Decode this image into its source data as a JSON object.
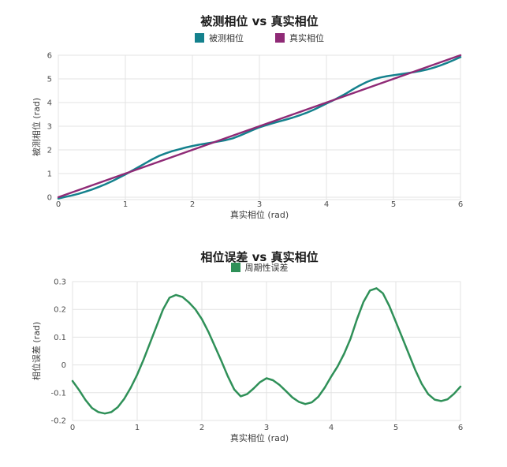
{
  "chart_data": [
    {
      "id": "measured-vs-true",
      "type": "line",
      "title": "被测相位 vs 真实相位",
      "xlabel": "真实相位 (rad)",
      "ylabel": "被测相位 (rad)",
      "xlim": [
        0,
        6
      ],
      "ylim": [
        -0.1,
        6
      ],
      "xticks": [
        0,
        1,
        2,
        3,
        4,
        5,
        6
      ],
      "yticks": [
        0,
        1,
        2,
        3,
        4,
        5,
        6
      ],
      "grid": true,
      "legend_position": "top-center",
      "x": [
        0,
        0.1,
        0.2,
        0.3,
        0.4,
        0.5,
        0.6,
        0.7,
        0.8,
        0.9,
        1,
        1.1,
        1.2,
        1.3,
        1.4,
        1.5,
        1.6,
        1.7,
        1.8,
        1.9,
        2,
        2.1,
        2.2,
        2.3,
        2.4,
        2.5,
        2.6,
        2.7,
        2.8,
        2.9,
        3,
        3.1,
        3.2,
        3.3,
        3.4,
        3.5,
        3.6,
        3.7,
        3.8,
        3.9,
        4,
        4.1,
        4.2,
        4.3,
        4.4,
        4.5,
        4.6,
        4.7,
        4.8,
        4.9,
        5,
        5.1,
        5.2,
        5.3,
        5.4,
        5.5,
        5.6,
        5.7,
        5.8,
        5.9,
        6
      ],
      "series": [
        {
          "id": "measured",
          "name": "被测相位",
          "color": "#14818d",
          "values": [
            -0.058,
            0.01,
            0.074,
            0.145,
            0.23,
            0.325,
            0.43,
            0.548,
            0.678,
            0.818,
            0.965,
            1.12,
            1.28,
            1.44,
            1.6,
            1.742,
            1.852,
            1.945,
            2.025,
            2.1,
            2.165,
            2.22,
            2.268,
            2.315,
            2.36,
            2.412,
            2.487,
            2.595,
            2.715,
            2.838,
            2.952,
            3.045,
            3.128,
            3.206,
            3.283,
            3.367,
            3.459,
            3.565,
            3.685,
            3.818,
            3.958,
            4.095,
            4.24,
            4.395,
            4.565,
            4.727,
            4.868,
            4.976,
            5.058,
            5.112,
            5.155,
            5.198,
            5.24,
            5.282,
            5.332,
            5.395,
            5.475,
            5.57,
            5.676,
            5.796,
            5.922
          ]
        },
        {
          "id": "true",
          "name": "真实相位",
          "color": "#8f2a76",
          "values": [
            0,
            0.1,
            0.2,
            0.3,
            0.4,
            0.5,
            0.6,
            0.7,
            0.8,
            0.9,
            1,
            1.1,
            1.2,
            1.3,
            1.4,
            1.5,
            1.6,
            1.7,
            1.8,
            1.9,
            2,
            2.1,
            2.2,
            2.3,
            2.4,
            2.5,
            2.6,
            2.7,
            2.8,
            2.9,
            3,
            3.1,
            3.2,
            3.3,
            3.4,
            3.5,
            3.6,
            3.7,
            3.8,
            3.9,
            4,
            4.1,
            4.2,
            4.3,
            4.4,
            4.5,
            4.6,
            4.7,
            4.8,
            4.9,
            5,
            5.1,
            5.2,
            5.3,
            5.4,
            5.5,
            5.6,
            5.7,
            5.8,
            5.9,
            6
          ]
        }
      ]
    },
    {
      "id": "phase-error",
      "type": "line",
      "title": "相位误差 vs 真实相位",
      "xlabel": "真实相位 (rad)",
      "ylabel": "相位误差 (rad)",
      "xlim": [
        0,
        6
      ],
      "ylim": [
        -0.2,
        0.3
      ],
      "xticks": [
        0,
        1,
        2,
        3,
        4,
        5,
        6
      ],
      "yticks": [
        0.3,
        0.2,
        0.1,
        0,
        -0.1,
        -0.2
      ],
      "grid": true,
      "legend_position": "top-center",
      "x": [
        0,
        0.1,
        0.2,
        0.3,
        0.4,
        0.5,
        0.6,
        0.7,
        0.8,
        0.9,
        1,
        1.1,
        1.2,
        1.3,
        1.4,
        1.5,
        1.6,
        1.7,
        1.8,
        1.9,
        2,
        2.1,
        2.2,
        2.3,
        2.4,
        2.5,
        2.6,
        2.7,
        2.8,
        2.9,
        3,
        3.1,
        3.2,
        3.3,
        3.4,
        3.5,
        3.6,
        3.7,
        3.8,
        3.9,
        4,
        4.1,
        4.2,
        4.3,
        4.4,
        4.5,
        4.6,
        4.7,
        4.8,
        4.9,
        5,
        5.1,
        5.2,
        5.3,
        5.4,
        5.5,
        5.6,
        5.7,
        5.8,
        5.9,
        6
      ],
      "series": [
        {
          "id": "error",
          "name": "周期性误差",
          "color": "#2f9058",
          "values": [
            -0.058,
            -0.09,
            -0.126,
            -0.155,
            -0.17,
            -0.175,
            -0.17,
            -0.152,
            -0.122,
            -0.082,
            -0.035,
            0.02,
            0.08,
            0.14,
            0.2,
            0.242,
            0.252,
            0.245,
            0.225,
            0.2,
            0.165,
            0.12,
            0.068,
            0.015,
            -0.04,
            -0.088,
            -0.113,
            -0.105,
            -0.085,
            -0.062,
            -0.048,
            -0.055,
            -0.072,
            -0.094,
            -0.117,
            -0.133,
            -0.141,
            -0.135,
            -0.115,
            -0.082,
            -0.042,
            -0.005,
            0.04,
            0.095,
            0.165,
            0.227,
            0.268,
            0.276,
            0.258,
            0.212,
            0.155,
            0.098,
            0.04,
            -0.018,
            -0.068,
            -0.105,
            -0.125,
            -0.13,
            -0.124,
            -0.104,
            -0.078
          ]
        }
      ]
    }
  ],
  "style": {
    "grid_color": "#e3e3e3",
    "tick_color": "#4d4d4d",
    "background": "#ffffff"
  }
}
